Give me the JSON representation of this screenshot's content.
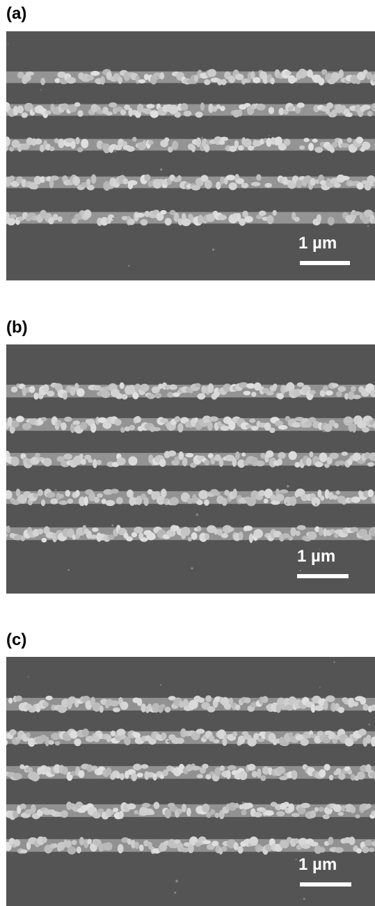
{
  "panels": [
    {
      "label": "(a)",
      "scale_label": "1 µm",
      "line_count": 5,
      "background": "#545454",
      "line_color": "#c9c9c9"
    },
    {
      "label": "(b)",
      "scale_label": "1 µm",
      "line_count": 5,
      "background": "#545454",
      "line_color": "#c6c6c6"
    },
    {
      "label": "(c)",
      "scale_label": "1 µm",
      "line_count": 5,
      "background": "#545454",
      "line_color": "#c3c3c3"
    }
  ]
}
